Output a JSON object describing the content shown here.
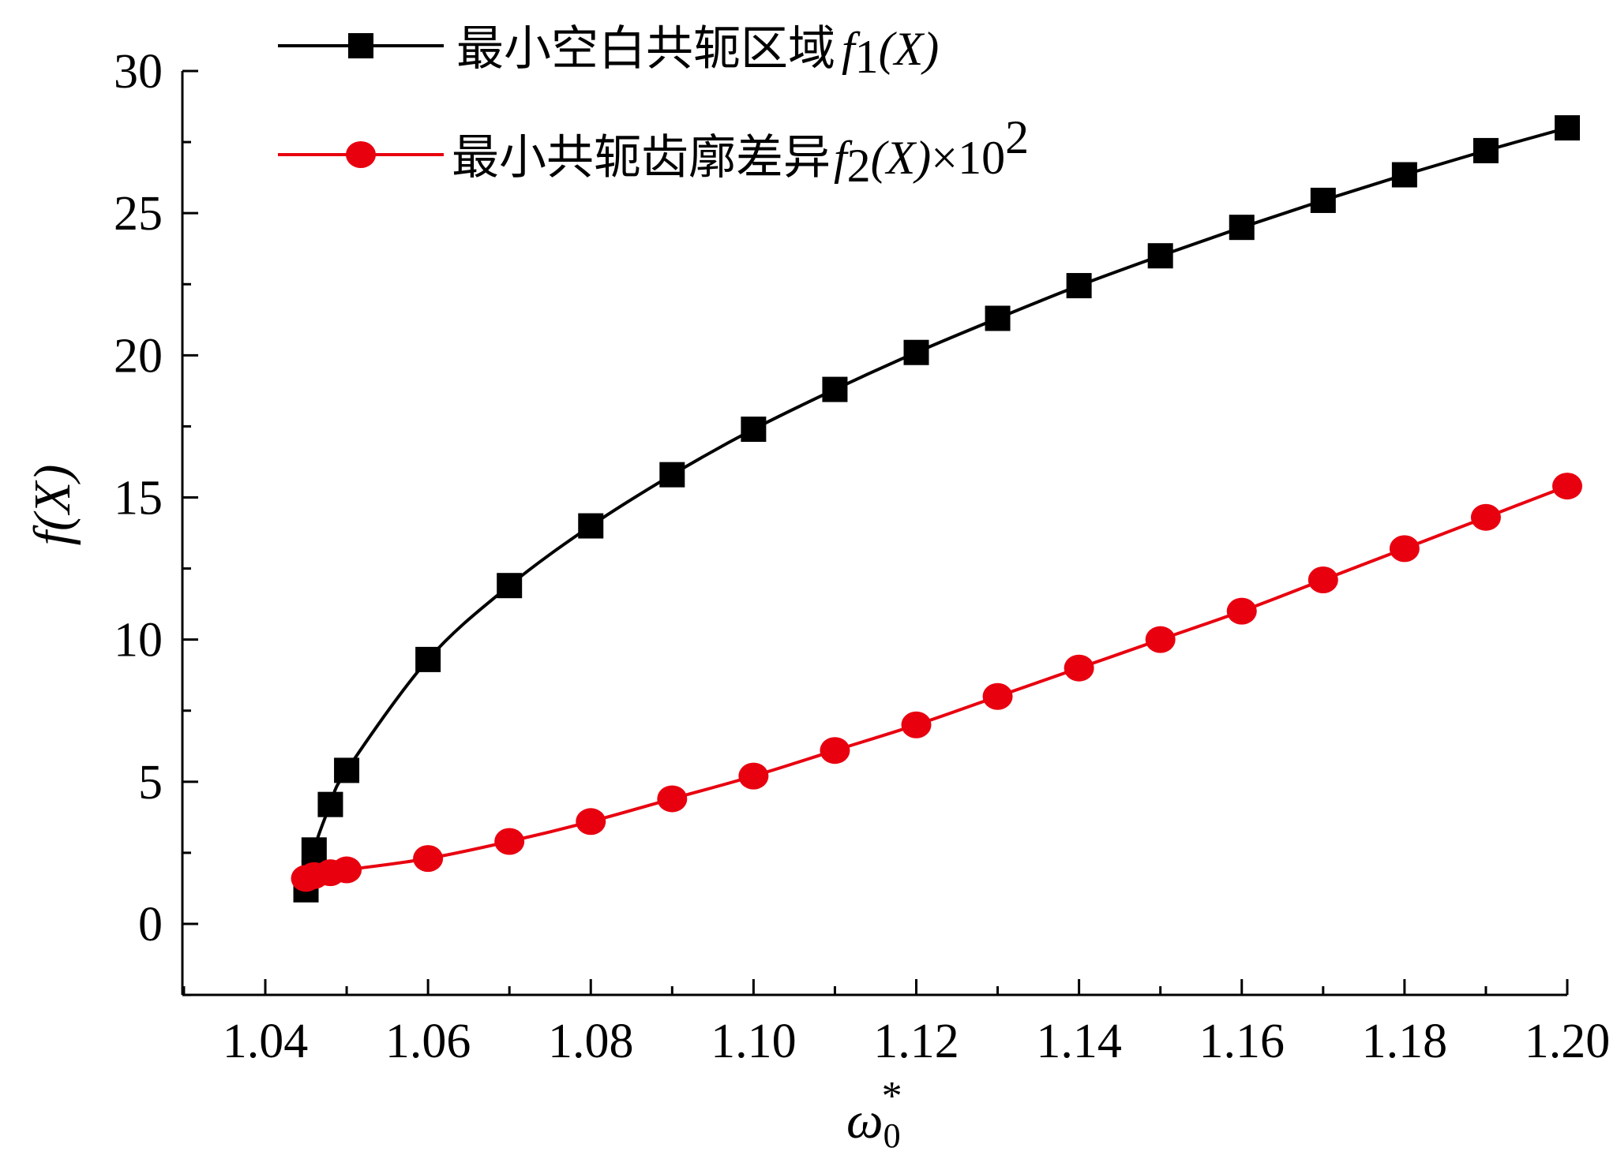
{
  "chart_data": {
    "type": "line",
    "xlabel": {
      "symbol": "ω",
      "subscript": "0",
      "superscript": "*"
    },
    "ylabel": {
      "f": "f",
      "arg": "(X)"
    },
    "xlim": [
      1.03,
      1.2
    ],
    "ylim": [
      -2.5,
      30
    ],
    "x_ticks": [
      "1.04",
      "1.06",
      "1.08",
      "1.10",
      "1.12",
      "1.14",
      "1.16",
      "1.18",
      "1.20"
    ],
    "x_tick_values": [
      1.04,
      1.06,
      1.08,
      1.1,
      1.12,
      1.14,
      1.16,
      1.18,
      1.2
    ],
    "y_ticks": [
      "0",
      "5",
      "10",
      "15",
      "20",
      "25",
      "30"
    ],
    "y_tick_values": [
      0,
      5,
      10,
      15,
      20,
      25,
      30
    ],
    "legend_position": "top-left",
    "grid": false,
    "series": [
      {
        "legend_text": "最小空白共轭区域",
        "legend_math": {
          "f": "f",
          "sub": "1",
          "arg": "(X)",
          "suffix": ""
        },
        "color": "#000000",
        "marker": "square",
        "points": [
          [
            1.045,
            1.2
          ],
          [
            1.046,
            1.8
          ],
          [
            1.046,
            2.6
          ],
          [
            1.048,
            4.2
          ],
          [
            1.05,
            5.4
          ],
          [
            1.06,
            9.3
          ],
          [
            1.07,
            11.9
          ],
          [
            1.08,
            14.0
          ],
          [
            1.09,
            15.8
          ],
          [
            1.1,
            17.4
          ],
          [
            1.11,
            18.8
          ],
          [
            1.12,
            20.1
          ],
          [
            1.13,
            21.3
          ],
          [
            1.14,
            22.45
          ],
          [
            1.15,
            23.5
          ],
          [
            1.16,
            24.5
          ],
          [
            1.17,
            25.45
          ],
          [
            1.18,
            26.35
          ],
          [
            1.19,
            27.2
          ],
          [
            1.2,
            28.0
          ]
        ]
      },
      {
        "legend_text": "最小共轭齿廓差异",
        "legend_math": {
          "f": "f",
          "sub": "2",
          "arg": "(X)",
          "suffix": "×10",
          "sup": "2"
        },
        "color": "#e8000f",
        "marker": "circle",
        "points": [
          [
            1.045,
            1.6
          ],
          [
            1.046,
            1.7
          ],
          [
            1.048,
            1.8
          ],
          [
            1.05,
            1.9
          ],
          [
            1.06,
            2.3
          ],
          [
            1.07,
            2.9
          ],
          [
            1.08,
            3.6
          ],
          [
            1.09,
            4.4
          ],
          [
            1.1,
            5.2
          ],
          [
            1.11,
            6.1
          ],
          [
            1.12,
            7.0
          ],
          [
            1.13,
            8.0
          ],
          [
            1.14,
            9.0
          ],
          [
            1.15,
            10.0
          ],
          [
            1.16,
            11.0
          ],
          [
            1.17,
            12.1
          ],
          [
            1.18,
            13.2
          ],
          [
            1.19,
            14.3
          ],
          [
            1.2,
            15.4
          ]
        ]
      }
    ]
  }
}
